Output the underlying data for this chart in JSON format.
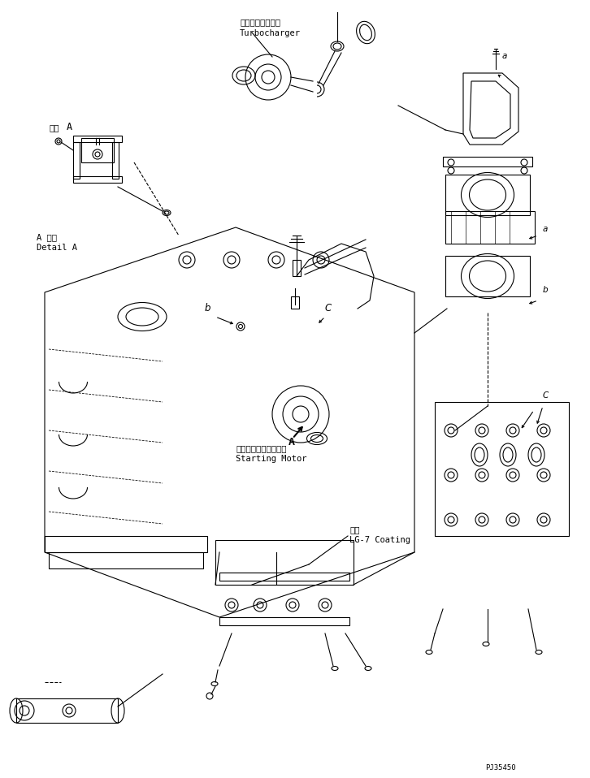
{
  "bg_color": "#ffffff",
  "title_text": "",
  "part_code": "PJ35450",
  "labels": {
    "turbocharger_jp": "ターボチャージャ",
    "turbocharger_en": "Turbocharger",
    "detail_a_jp": "A 詳細",
    "detail_a_en": "Detail A",
    "starting_motor_jp": "スターティングモータ",
    "starting_motor_en": "Starting Motor",
    "coating_jp": "塗布",
    "coating_en": "LG-7 Coating"
  },
  "line_color": "#000000",
  "line_width": 0.8,
  "annotation_fontsize": 7.5,
  "label_fontsize": 7.5
}
